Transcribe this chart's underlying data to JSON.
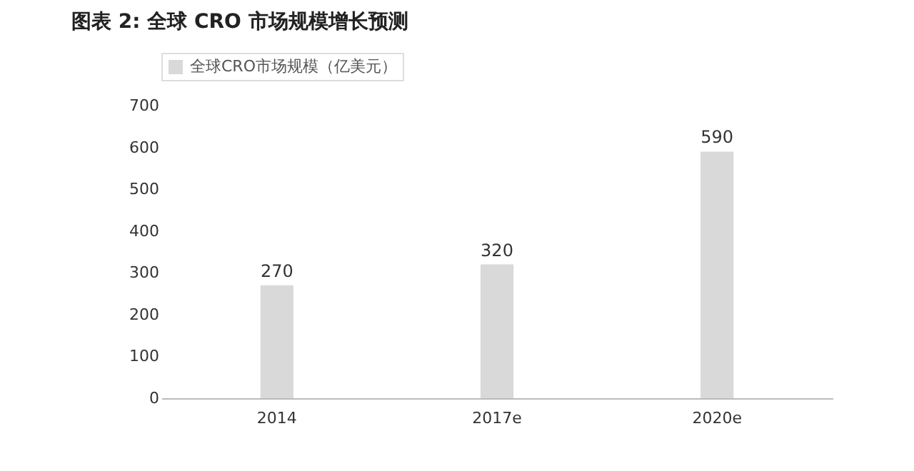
{
  "chart_data": {
    "type": "bar",
    "title": "图表 2: 全球 CRO 市场规模增长预测",
    "categories": [
      "2014",
      "2017e",
      "2020e"
    ],
    "series": [
      {
        "name": "全球CRO市场规模（亿美元）",
        "color": "#d9d9d9",
        "values": [
          270,
          320,
          590
        ]
      }
    ],
    "ylim": [
      0,
      700
    ],
    "yticks": [
      0,
      100,
      200,
      300,
      400,
      500,
      600,
      700
    ],
    "data_labels": true,
    "legend": "top",
    "grid": false
  }
}
